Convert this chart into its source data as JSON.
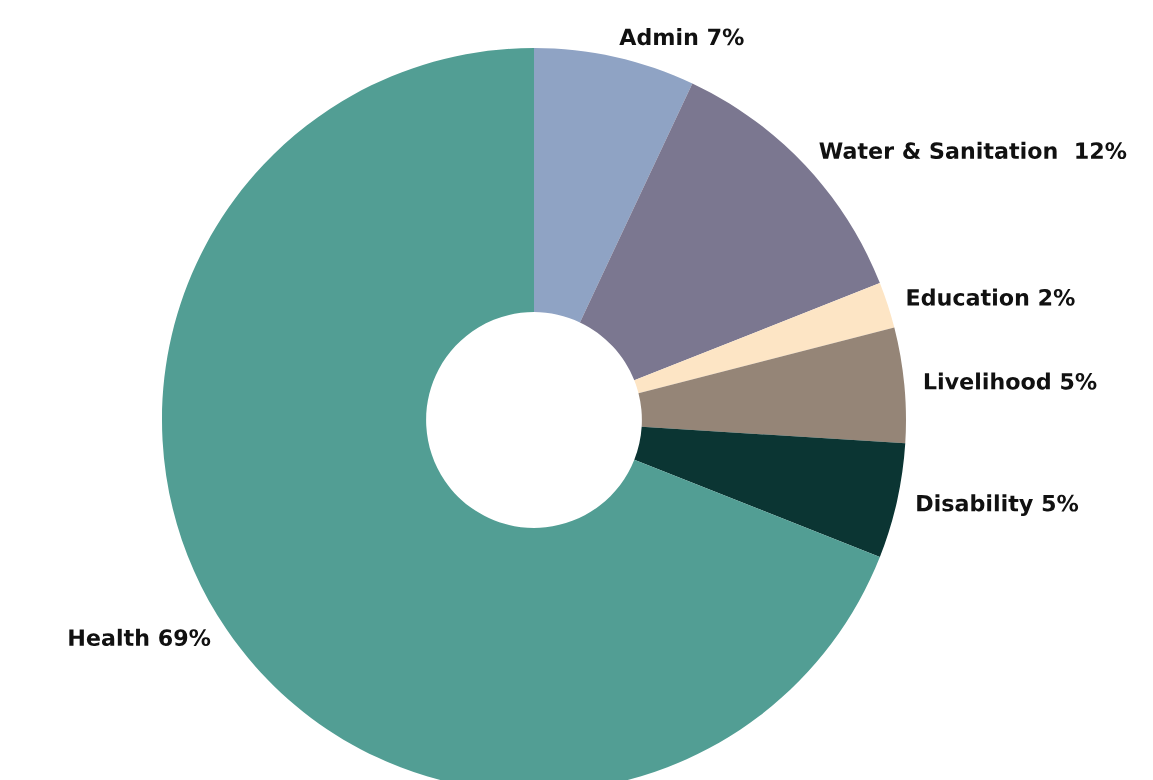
{
  "chart_data": {
    "type": "donut",
    "categories": [
      "Admin 7%",
      "Water & Sanitation  12%",
      "Education 2%",
      "Livelihood 5%",
      "Disability 5%",
      "Health 69%"
    ],
    "values": [
      7,
      12,
      2,
      5,
      5,
      69
    ],
    "colors": [
      "#8fa3c4",
      "#7b7790",
      "#fde5c5",
      "#958577",
      "#0b3533",
      "#529e94"
    ]
  }
}
